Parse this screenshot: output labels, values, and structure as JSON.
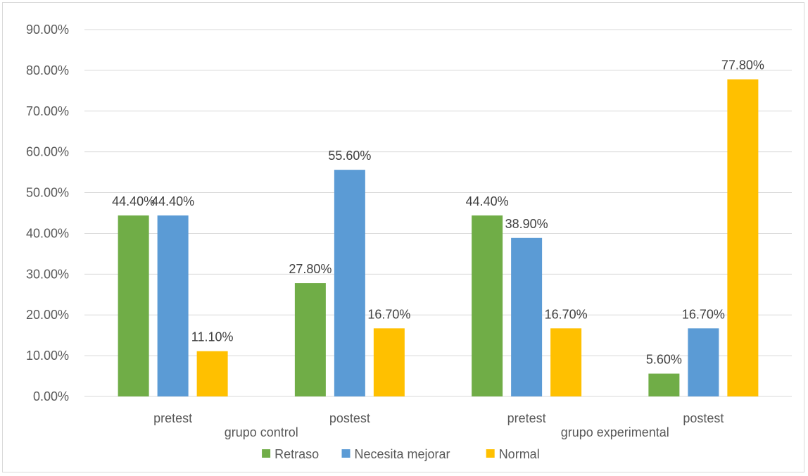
{
  "chart_data": {
    "type": "bar",
    "title": "",
    "xlabel": "",
    "ylabel": "",
    "ylim": [
      0,
      0.9
    ],
    "y_ticks": [
      "0.00%",
      "10.00%",
      "20.00%",
      "30.00%",
      "40.00%",
      "50.00%",
      "60.00%",
      "70.00%",
      "80.00%",
      "90.00%"
    ],
    "grid": true,
    "legend_position": "bottom",
    "categories": [
      "pretest",
      "postest",
      "pretest",
      "postest"
    ],
    "groups": [
      {
        "label": "grupo control",
        "categories": [
          0,
          1
        ]
      },
      {
        "label": "grupo experimental",
        "categories": [
          2,
          3
        ]
      }
    ],
    "series": [
      {
        "name": "Retraso",
        "color": "#70ad47",
        "values": [
          0.444,
          0.278,
          0.444,
          0.056
        ],
        "labels": [
          "44.40%",
          "27.80%",
          "44.40%",
          "5.60%"
        ]
      },
      {
        "name": "Necesita mejorar",
        "color": "#5b9bd5",
        "values": [
          0.444,
          0.556,
          0.389,
          0.167
        ],
        "labels": [
          "44.40%",
          "55.60%",
          "38.90%",
          "16.70%"
        ]
      },
      {
        "name": "Normal",
        "color": "#ffc000",
        "values": [
          0.111,
          0.167,
          0.167,
          0.778
        ],
        "labels": [
          "11.10%",
          "16.70%",
          "16.70%",
          "77.80%"
        ]
      }
    ]
  }
}
